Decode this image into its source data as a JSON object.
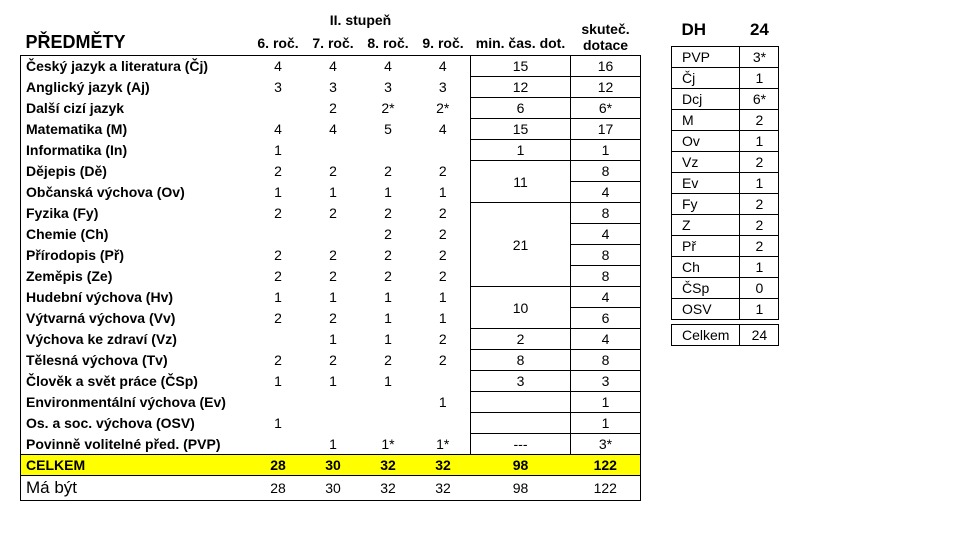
{
  "title": "II. stupeň",
  "main_headers": {
    "subjects": "PŘEDMĚTY",
    "cols": [
      "6. roč.",
      "7. roč.",
      "8. roč.",
      "9. roč.",
      "min. čas. dot.",
      "skuteč.\ndotace"
    ]
  },
  "rows": [
    {
      "name": "Český jazyk a literatura (Čj)",
      "c": [
        "4",
        "4",
        "4",
        "4"
      ],
      "min": "15",
      "act": "16"
    },
    {
      "name": "Anglický jazyk (Aj)",
      "c": [
        "3",
        "3",
        "3",
        "3"
      ],
      "min": "12",
      "act": "12"
    },
    {
      "name": "Další cizí jazyk",
      "c": [
        "",
        "2",
        "2*",
        "2*"
      ],
      "min": "6",
      "act": "6*"
    },
    {
      "name": "Matematika (M)",
      "c": [
        "4",
        "4",
        "5",
        "4"
      ],
      "min": "15",
      "act": "17"
    },
    {
      "name": "Informatika (In)",
      "c": [
        "1",
        "",
        "",
        ""
      ],
      "min": "1",
      "act": "1"
    },
    {
      "name": "Dějepis (Dě)",
      "c": [
        "2",
        "2",
        "2",
        "2"
      ],
      "min": null,
      "act": "8"
    },
    {
      "name": "Občanská výchova (Ov)",
      "c": [
        "1",
        "1",
        "1",
        "1"
      ],
      "min": null,
      "act": "4"
    },
    {
      "name": "Fyzika (Fy)",
      "c": [
        "2",
        "2",
        "2",
        "2"
      ],
      "min": null,
      "act": "8"
    },
    {
      "name": "Chemie (Ch)",
      "c": [
        "",
        "",
        "2",
        "2"
      ],
      "min": null,
      "act": "4"
    },
    {
      "name": "Přírodopis (Př)",
      "c": [
        "2",
        "2",
        "2",
        "2"
      ],
      "min": null,
      "act": "8"
    },
    {
      "name": "Zeměpis (Ze)",
      "c": [
        "2",
        "2",
        "2",
        "2"
      ],
      "min": null,
      "act": "8"
    },
    {
      "name": "Hudební výchova (Hv)",
      "c": [
        "1",
        "1",
        "1",
        "1"
      ],
      "min": null,
      "act": "4"
    },
    {
      "name": "Výtvarná výchova (Vv)",
      "c": [
        "2",
        "2",
        "1",
        "1"
      ],
      "min": null,
      "act": "6"
    },
    {
      "name": "Výchova ke zdraví (Vz)",
      "c": [
        "",
        "1",
        "1",
        "2"
      ],
      "min": "2",
      "act": "4"
    },
    {
      "name": "Tělesná výchova (Tv)",
      "c": [
        "2",
        "2",
        "2",
        "2"
      ],
      "min": "8",
      "act": "8"
    },
    {
      "name": "Člověk a svět práce (ČSp)",
      "c": [
        "1",
        "1",
        "1",
        ""
      ],
      "min": "3",
      "act": "3"
    },
    {
      "name": "Environmentální výchova (Ev)",
      "c": [
        "",
        "",
        "",
        "1"
      ],
      "min": "",
      "act": "1"
    },
    {
      "name": "Os. a soc. výchova (OSV)",
      "c": [
        "1",
        "",
        "",
        ""
      ],
      "min": "",
      "act": "1"
    },
    {
      "name": "Povinně volitelné před. (PVP)",
      "c": [
        "",
        "1",
        "1*",
        "1*"
      ],
      "min": "---",
      "act": "3*"
    }
  ],
  "merged_mins": {
    "11": {
      "value": "11",
      "span": 2,
      "start": 5
    },
    "21": {
      "value": "21",
      "span": 4,
      "start": 7
    },
    "10": {
      "value": "10",
      "span": 2,
      "start": 11
    }
  },
  "totals": {
    "label": "CELKEM",
    "vals": [
      "28",
      "30",
      "32",
      "32",
      "98",
      "122"
    ]
  },
  "mabyt": {
    "label": "Má být",
    "vals": [
      "28",
      "30",
      "32",
      "32",
      "98",
      "122"
    ]
  },
  "side": {
    "dh_label": "DH",
    "dh_val": "24",
    "rows": [
      {
        "l": "PVP",
        "v": "3*"
      },
      {
        "l": "Čj",
        "v": "1"
      },
      {
        "l": "Dcj",
        "v": "6*"
      },
      {
        "l": "M",
        "v": "2"
      },
      {
        "l": "Ov",
        "v": "1"
      },
      {
        "l": "Vz",
        "v": "2"
      },
      {
        "l": "Ev",
        "v": "1"
      },
      {
        "l": "Fy",
        "v": "2"
      },
      {
        "l": "Z",
        "v": "2"
      },
      {
        "l": "Př",
        "v": "2"
      },
      {
        "l": "Ch",
        "v": "1"
      },
      {
        "l": "ČSp",
        "v": "0"
      },
      {
        "l": "OSV",
        "v": "1"
      }
    ],
    "total": {
      "l": "Celkem",
      "v": "24"
    }
  },
  "column_widths": {
    "subject": 220,
    "col": 55,
    "min": 90,
    "act": 70
  },
  "colors": {
    "highlight": "#ffff00",
    "border": "#000000"
  }
}
